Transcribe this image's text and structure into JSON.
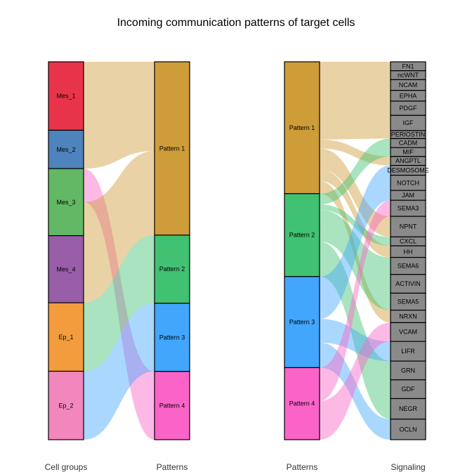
{
  "chart_data": {
    "type": "sankey",
    "title": "Incoming communication patterns of target cells",
    "left_panel": {
      "left_axis_label": "Cell groups",
      "right_axis_label": "Patterns",
      "cell_groups": [
        {
          "name": "Mes_1",
          "color": "#E8344A",
          "weight": 1.0
        },
        {
          "name": "Mes_2",
          "color": "#4F83BD",
          "weight": 0.56
        },
        {
          "name": "Mes_3",
          "color": "#62B865",
          "weight": 0.98
        },
        {
          "name": "Mes_4",
          "color": "#985EA8",
          "weight": 0.98
        },
        {
          "name": "Ep_1",
          "color": "#F29C3E",
          "weight": 1.0
        },
        {
          "name": "Ep_2",
          "color": "#F287BD",
          "weight": 1.0
        }
      ],
      "patterns": [
        {
          "name": "Pattern 1",
          "color": "#CE9C38",
          "weight": 2.54
        },
        {
          "name": "Pattern 2",
          "color": "#41C172",
          "weight": 1.0
        },
        {
          "name": "Pattern 3",
          "color": "#42A6FD",
          "weight": 1.0
        },
        {
          "name": "Pattern 4",
          "color": "#FA64C8",
          "weight": 1.0
        }
      ],
      "flows": [
        {
          "from": "Mes_1",
          "to": "Pattern 1"
        },
        {
          "from": "Mes_2",
          "to": "Pattern 1"
        },
        {
          "from": "Mes_3",
          "to": "Pattern 4"
        },
        {
          "from": "Mes_3",
          "to": "Pattern 1"
        },
        {
          "from": "Mes_4",
          "to": "Pattern 1"
        },
        {
          "from": "Ep_1",
          "to": "Pattern 2"
        },
        {
          "from": "Ep_2",
          "to": "Pattern 3"
        }
      ]
    },
    "right_panel": {
      "left_axis_label": "Patterns",
      "right_axis_label": "Signaling",
      "patterns": [
        {
          "name": "Pattern 1",
          "color": "#CE9C38",
          "weight": 1.94
        },
        {
          "name": "Pattern 2",
          "color": "#41C172",
          "weight": 1.22
        },
        {
          "name": "Pattern 3",
          "color": "#42A6FD",
          "weight": 1.34
        },
        {
          "name": "Pattern 4",
          "color": "#FA64C8",
          "weight": 1.06
        }
      ],
      "signaling": [
        {
          "name": "FN1",
          "weight": 1
        },
        {
          "name": "ncWNT",
          "weight": 1
        },
        {
          "name": "NCAM",
          "weight": 1.2
        },
        {
          "name": "EPHA",
          "weight": 1.2
        },
        {
          "name": "PDGF",
          "weight": 1.6
        },
        {
          "name": "IGF",
          "weight": 1.7
        },
        {
          "name": "PERIOSTIN",
          "weight": 0.9
        },
        {
          "name": "CADM",
          "weight": 1
        },
        {
          "name": "MIF",
          "weight": 1
        },
        {
          "name": "ANGPTL",
          "weight": 1
        },
        {
          "name": "DESMOSOME",
          "weight": 1.1
        },
        {
          "name": "NOTCH",
          "weight": 1.7
        },
        {
          "name": "JAM",
          "weight": 1.1
        },
        {
          "name": "SEMA3",
          "weight": 1.8
        },
        {
          "name": "NPNT",
          "weight": 2.3
        },
        {
          "name": "CXCL",
          "weight": 1
        },
        {
          "name": "HH",
          "weight": 1.3
        },
        {
          "name": "SEMA6",
          "weight": 1.9
        },
        {
          "name": "ACTIVIN",
          "weight": 2.1
        },
        {
          "name": "SEMA5",
          "weight": 1.9
        },
        {
          "name": "NRXN",
          "weight": 1.4
        },
        {
          "name": "VCAM",
          "weight": 2.1
        },
        {
          "name": "LIFR",
          "weight": 2.2
        },
        {
          "name": "GRN",
          "weight": 2.1
        },
        {
          "name": "GDF",
          "weight": 2.1
        },
        {
          "name": "NEGR",
          "weight": 2.3
        },
        {
          "name": "OCLN",
          "weight": 2.3
        }
      ],
      "flows": [
        {
          "from": "Pattern 1",
          "to": [
            "FN1",
            "ncWNT",
            "NCAM",
            "EPHA",
            "PDGF",
            "IGF",
            "PERIOSTIN",
            "ANGPTL",
            "NPNT",
            "HH",
            "NRXN"
          ]
        },
        {
          "from": "Pattern 2",
          "to": [
            "CADM",
            "MIF",
            "CXCL",
            "SEMA6",
            "ACTIVIN",
            "SEMA5",
            "GRN",
            "GDF",
            "NEGR"
          ]
        },
        {
          "from": "Pattern 3",
          "to": [
            "DESMOSOME",
            "NOTCH",
            "JAM",
            "LIFR",
            "OCLN"
          ]
        },
        {
          "from": "Pattern 4",
          "to": [
            "SEMA3",
            "VCAM"
          ]
        }
      ]
    }
  }
}
